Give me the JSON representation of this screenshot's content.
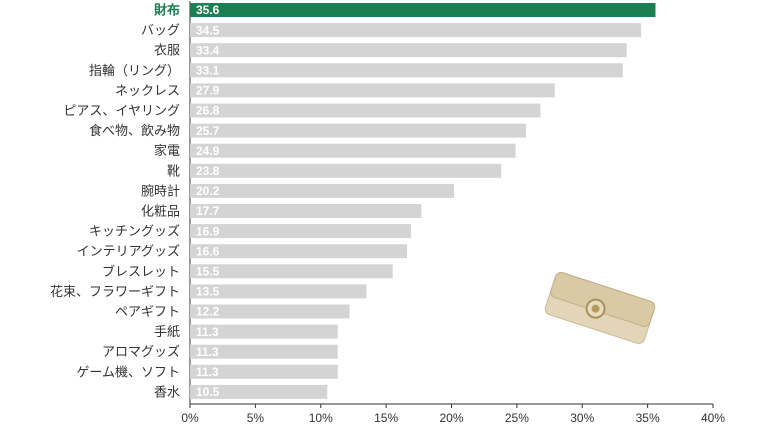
{
  "chart_data": {
    "type": "bar",
    "orientation": "horizontal",
    "categories": [
      "財布",
      "バッグ",
      "衣服",
      "指輪（リング）",
      "ネックレス",
      "ピアス、イヤリング",
      "食べ物、飲み物",
      "家電",
      "靴",
      "腕時計",
      "化粧品",
      "キッチングッズ",
      "インテリアグッズ",
      "ブレスレット",
      "花束、フラワーギフト",
      "ペアギフト",
      "手紙",
      "アロマグッズ",
      "ゲーム機、ソフト",
      "香水"
    ],
    "values": [
      35.6,
      34.5,
      33.4,
      33.1,
      27.9,
      26.8,
      25.7,
      24.9,
      23.8,
      20.2,
      17.7,
      16.9,
      16.6,
      15.5,
      13.5,
      12.2,
      11.3,
      11.3,
      11.3,
      10.5
    ],
    "color": "#d4d4d4",
    "colors": [
      "#1a7f52",
      "#d4d4d4",
      "#d4d4d4",
      "#d4d4d4",
      "#d4d4d4",
      "#d4d4d4",
      "#d4d4d4",
      "#d4d4d4",
      "#d4d4d4",
      "#d4d4d4",
      "#d4d4d4",
      "#d4d4d4",
      "#d4d4d4",
      "#d4d4d4",
      "#d4d4d4",
      "#d4d4d4",
      "#d4d4d4",
      "#d4d4d4",
      "#d4d4d4",
      "#d4d4d4"
    ],
    "xlim": [
      0,
      40
    ],
    "xticks": [
      {
        "value": 0,
        "label": "0%"
      },
      {
        "value": 5,
        "label": "5%"
      },
      {
        "value": 10,
        "label": "10%"
      },
      {
        "value": 15,
        "label": "15%"
      },
      {
        "value": 20,
        "label": "20%"
      },
      {
        "value": 25,
        "label": "25%"
      },
      {
        "value": 30,
        "label": "30%"
      },
      {
        "value": 35,
        "label": "35%"
      },
      {
        "value": 40,
        "label": "40%"
      }
    ],
    "grid": false
  }
}
